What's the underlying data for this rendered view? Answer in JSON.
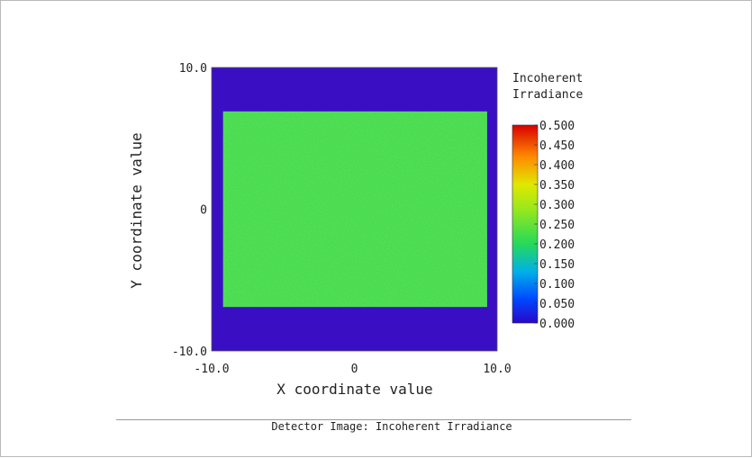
{
  "caption": "Detector Image: Incoherent Irradiance",
  "chart_data": {
    "type": "heatmap",
    "title": "",
    "xlabel": "X coordinate value",
    "ylabel": "Y coordinate value",
    "xlim": [
      -10.0,
      10.0
    ],
    "ylim": [
      -10.0,
      10.0
    ],
    "x_tick_labels": [
      "-10.0",
      "0",
      "10.0"
    ],
    "y_tick_labels": [
      "10.0",
      "0",
      "-10.0"
    ],
    "colorbar": {
      "title_lines": [
        "Incoherent",
        "Irradiance"
      ],
      "range": [
        0.0,
        0.5
      ],
      "tick_labels": [
        "0.500",
        "0.450",
        "0.400",
        "0.350",
        "0.300",
        "0.250",
        "0.200",
        "0.150",
        "0.100",
        "0.050",
        "0.000"
      ]
    },
    "regions": [
      {
        "name": "background",
        "value": 0.0,
        "x_range": [
          -10.0,
          10.0
        ],
        "y_range": [
          -10.0,
          10.0
        ],
        "color": "#3a0fc4"
      },
      {
        "name": "illuminated-rectangle",
        "value": 0.19,
        "x_range": [
          -9.2,
          9.3
        ],
        "y_range": [
          -6.9,
          6.9
        ],
        "color": "#33d84a"
      }
    ],
    "colors": {
      "low": "#2a06c8",
      "mid": "#33d84a",
      "high": "#d80000"
    }
  }
}
